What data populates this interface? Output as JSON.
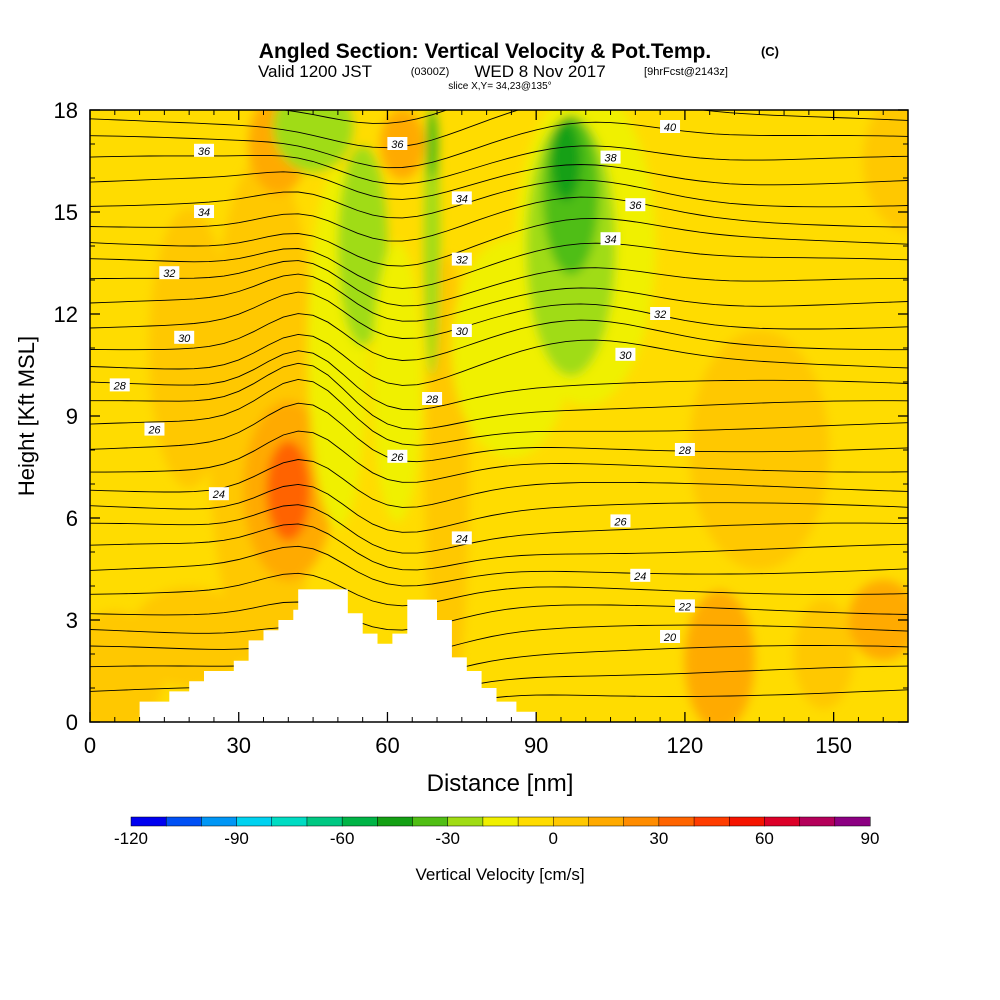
{
  "header": {
    "title_main": "Angled Section: Vertical Velocity & Pot.Temp.",
    "title_unit": "(C)",
    "valid_a": "Valid 1200 JST",
    "valid_b": "(0300Z)",
    "valid_c": "WED 8 Nov 2017",
    "valid_d": "[9hrFcst@2143z]",
    "slice": "slice X,Y= 34,23@135°"
  },
  "colorbar": {
    "label": "Vertical Velocity [cm/s]",
    "tick_labels": [
      "-120",
      "-90",
      "-60",
      "-30",
      "0",
      "30",
      "60",
      "90"
    ],
    "colors": [
      "#0000f0",
      "#0050f5",
      "#0096f5",
      "#00d2f0",
      "#00dcc3",
      "#00c882",
      "#00b446",
      "#14a014",
      "#50be14",
      "#a0dc14",
      "#f0f000",
      "#ffdc00",
      "#ffc800",
      "#ffaa00",
      "#ff8c00",
      "#ff6400",
      "#ff3c00",
      "#f51400",
      "#dc0028",
      "#b4005a",
      "#8c0082",
      "#6e0096"
    ]
  },
  "chart_data": {
    "type": "heatmap",
    "title": "Angled Section: Vertical Velocity & Pot.Temp.",
    "xlabel": "Distance [nm]",
    "ylabel": "Height [Kft MSL]",
    "xlim": [
      0,
      165
    ],
    "ylim": [
      0,
      18
    ],
    "xticks": [
      0,
      30,
      60,
      90,
      120,
      150
    ],
    "yticks": [
      0,
      3,
      6,
      9,
      12,
      15,
      18
    ],
    "shaded_field": "Vertical Velocity [cm/s]",
    "shading_range": [
      -120,
      90
    ],
    "shading_step": 10,
    "contour_field": "Pot.Temp. (C)",
    "contour_labels": [
      {
        "text": "36",
        "x": 23,
        "y": 16.8
      },
      {
        "text": "34",
        "x": 23,
        "y": 15.0
      },
      {
        "text": "32",
        "x": 16,
        "y": 13.2
      },
      {
        "text": "30",
        "x": 19,
        "y": 11.3
      },
      {
        "text": "28",
        "x": 6,
        "y": 9.9
      },
      {
        "text": "26",
        "x": 13,
        "y": 8.6
      },
      {
        "text": "24",
        "x": 26,
        "y": 6.7
      },
      {
        "text": "36",
        "x": 62,
        "y": 17.0
      },
      {
        "text": "34",
        "x": 75,
        "y": 15.4
      },
      {
        "text": "32",
        "x": 75,
        "y": 13.6
      },
      {
        "text": "30",
        "x": 75,
        "y": 11.5
      },
      {
        "text": "28",
        "x": 69,
        "y": 9.5
      },
      {
        "text": "26",
        "x": 62,
        "y": 7.8
      },
      {
        "text": "24",
        "x": 75,
        "y": 5.4
      },
      {
        "text": "40",
        "x": 117,
        "y": 17.5
      },
      {
        "text": "38",
        "x": 105,
        "y": 16.6
      },
      {
        "text": "36",
        "x": 110,
        "y": 15.2
      },
      {
        "text": "34",
        "x": 105,
        "y": 14.2
      },
      {
        "text": "32",
        "x": 115,
        "y": 12.0
      },
      {
        "text": "30",
        "x": 108,
        "y": 10.8
      },
      {
        "text": "28",
        "x": 120,
        "y": 8.0
      },
      {
        "text": "26",
        "x": 107,
        "y": 5.9
      },
      {
        "text": "24",
        "x": 111,
        "y": 4.3
      },
      {
        "text": "22",
        "x": 120,
        "y": 3.4
      },
      {
        "text": "20",
        "x": 117,
        "y": 2.5
      }
    ],
    "terrain": [
      [
        10,
        0.3
      ],
      [
        10,
        0.6
      ],
      [
        16,
        0.6
      ],
      [
        16,
        0.9
      ],
      [
        20,
        0.9
      ],
      [
        20,
        1.2
      ],
      [
        23,
        1.2
      ],
      [
        23,
        1.5
      ],
      [
        29,
        1.5
      ],
      [
        29,
        1.8
      ],
      [
        32,
        1.8
      ],
      [
        32,
        2.4
      ],
      [
        35,
        2.4
      ],
      [
        35,
        2.7
      ],
      [
        38,
        2.7
      ],
      [
        38,
        3.0
      ],
      [
        41,
        3.0
      ],
      [
        41,
        3.3
      ],
      [
        42,
        3.3
      ],
      [
        42,
        3.9
      ],
      [
        52,
        3.9
      ],
      [
        52,
        3.2
      ],
      [
        55,
        3.2
      ],
      [
        55,
        2.6
      ],
      [
        58,
        2.6
      ],
      [
        58,
        2.3
      ],
      [
        61,
        2.3
      ],
      [
        61,
        2.6
      ],
      [
        64,
        2.6
      ],
      [
        64,
        3.6
      ],
      [
        70,
        3.6
      ],
      [
        70,
        3.0
      ],
      [
        73,
        3.0
      ],
      [
        73,
        1.9
      ],
      [
        76,
        1.9
      ],
      [
        76,
        1.5
      ],
      [
        79,
        1.5
      ],
      [
        79,
        1.0
      ],
      [
        82,
        1.0
      ],
      [
        82,
        0.6
      ],
      [
        86,
        0.6
      ],
      [
        86,
        0.3
      ],
      [
        90,
        0.3
      ],
      [
        90,
        0
      ]
    ]
  }
}
